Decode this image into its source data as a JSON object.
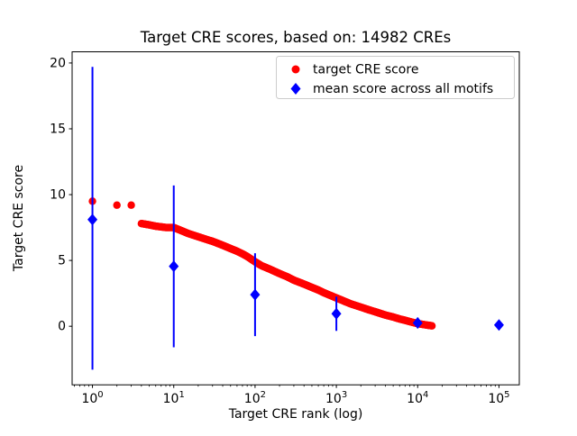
{
  "chart_data": {
    "type": "scatter",
    "title": "Target CRE scores, based on: 14982 CREs",
    "xlabel": "Target CRE rank (log)",
    "ylabel": "Target CRE score",
    "x_scale": "log",
    "xlim_log10": [
      -0.25,
      5.25
    ],
    "ylim": [
      -4.45,
      20.85
    ],
    "y_ticks": [
      0,
      5,
      10,
      15,
      20
    ],
    "x_tick_exponents": [
      0,
      1,
      2,
      3,
      4,
      5
    ],
    "legend_position": "upper right",
    "grid": false,
    "series": [
      {
        "name": "target CRE score",
        "type": "scatter",
        "marker": "circle",
        "color": "#ff0000",
        "total_points": 14982,
        "points": [
          [
            1,
            9.5
          ],
          [
            2,
            9.2
          ],
          [
            3,
            9.2
          ],
          [
            4,
            7.8
          ],
          [
            5,
            7.7
          ],
          [
            6,
            7.6
          ],
          [
            7,
            7.55
          ],
          [
            8,
            7.5
          ],
          [
            9,
            7.5
          ],
          [
            10,
            7.5
          ],
          [
            12,
            7.3
          ],
          [
            15,
            7.05
          ],
          [
            20,
            6.8
          ],
          [
            25,
            6.6
          ],
          [
            30,
            6.45
          ],
          [
            40,
            6.15
          ],
          [
            50,
            5.9
          ],
          [
            60,
            5.7
          ],
          [
            70,
            5.5
          ],
          [
            80,
            5.3
          ],
          [
            100,
            4.9
          ],
          [
            120,
            4.6
          ],
          [
            150,
            4.35
          ],
          [
            200,
            4.0
          ],
          [
            250,
            3.75
          ],
          [
            300,
            3.5
          ],
          [
            400,
            3.2
          ],
          [
            500,
            2.95
          ],
          [
            600,
            2.75
          ],
          [
            700,
            2.55
          ],
          [
            800,
            2.4
          ],
          [
            1000,
            2.15
          ],
          [
            1200,
            1.95
          ],
          [
            1500,
            1.7
          ],
          [
            2000,
            1.45
          ],
          [
            2500,
            1.25
          ],
          [
            3000,
            1.1
          ],
          [
            4000,
            0.85
          ],
          [
            5000,
            0.7
          ],
          [
            6000,
            0.55
          ],
          [
            7000,
            0.45
          ],
          [
            8000,
            0.35
          ],
          [
            10000,
            0.2
          ],
          [
            12000,
            0.12
          ],
          [
            14000,
            0.06
          ],
          [
            14982,
            0.03
          ]
        ]
      },
      {
        "name": "mean score across all motifs",
        "type": "errorbar",
        "marker": "diamond",
        "color": "#0000ff",
        "points": [
          {
            "x": 1,
            "y": 8.1,
            "lo": -3.3,
            "hi": 19.7
          },
          {
            "x": 10,
            "y": 4.55,
            "lo": -1.6,
            "hi": 10.7
          },
          {
            "x": 100,
            "y": 2.4,
            "lo": -0.75,
            "hi": 5.55
          },
          {
            "x": 1000,
            "y": 0.95,
            "lo": -0.35,
            "hi": 2.25
          },
          {
            "x": 10000,
            "y": 0.25,
            "lo": -0.15,
            "hi": 0.65
          },
          {
            "x": 100000,
            "y": 0.1,
            "lo": 0.0,
            "hi": 0.2
          }
        ]
      }
    ]
  }
}
